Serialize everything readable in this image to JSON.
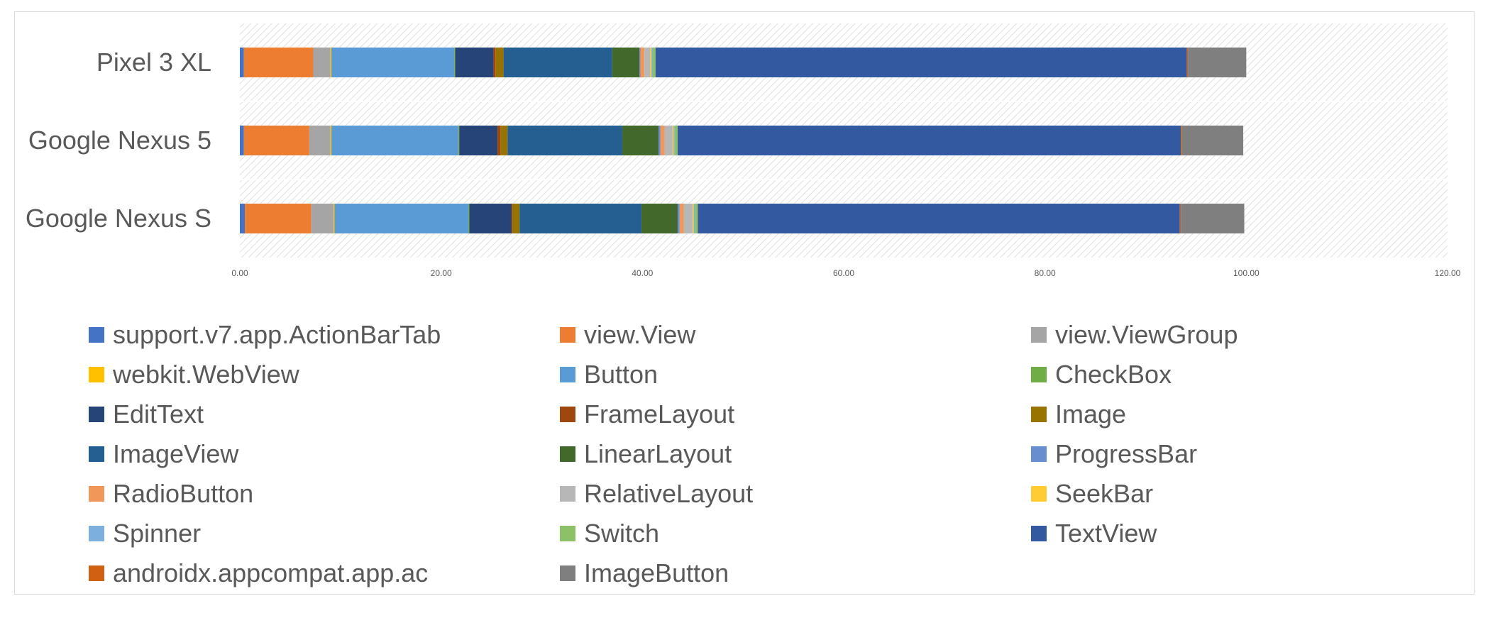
{
  "chart_data": {
    "type": "bar",
    "orientation": "horizontal",
    "stacked": true,
    "title": "",
    "xlabel": "",
    "ylabel": "",
    "xlim": [
      0,
      120
    ],
    "x_ticks": [
      "0.00",
      "20.00",
      "40.00",
      "60.00",
      "80.00",
      "100.00",
      "120.00"
    ],
    "categories": [
      "Pixel 3 XL",
      "Google Nexus 5",
      "Google Nexus S"
    ],
    "grid": false,
    "legend_position": "bottom",
    "series": [
      {
        "name": "support.v7.app.ActionBarTab",
        "color": "#4472C4",
        "values": [
          0.4,
          0.4,
          0.5
        ]
      },
      {
        "name": "view.View",
        "color": "#ED7D31",
        "values": [
          6.9,
          6.5,
          6.6
        ]
      },
      {
        "name": "view.ViewGroup",
        "color": "#A5A5A5",
        "values": [
          1.7,
          2.1,
          2.2
        ]
      },
      {
        "name": "webkit.WebView",
        "color": "#FFC000",
        "values": [
          0.1,
          0.1,
          0.1
        ]
      },
      {
        "name": "Button",
        "color": "#5B9BD5",
        "values": [
          12.2,
          12.6,
          13.3
        ]
      },
      {
        "name": "CheckBox",
        "color": "#70AD47",
        "values": [
          0.1,
          0.1,
          0.1
        ]
      },
      {
        "name": "EditText",
        "color": "#264478",
        "values": [
          3.8,
          3.8,
          4.2
        ]
      },
      {
        "name": "FrameLayout",
        "color": "#9E480E",
        "values": [
          0.2,
          0.3,
          0.1
        ]
      },
      {
        "name": "Image",
        "color": "#997300",
        "values": [
          0.8,
          0.7,
          0.7
        ]
      },
      {
        "name": "ImageView",
        "color": "#255E91",
        "values": [
          10.8,
          11.4,
          12.1
        ]
      },
      {
        "name": "LinearLayout",
        "color": "#43682B",
        "values": [
          2.7,
          3.6,
          3.6
        ]
      },
      {
        "name": "ProgressBar",
        "color": "#698ED0",
        "values": [
          0.1,
          0.2,
          0.2
        ]
      },
      {
        "name": "RadioButton",
        "color": "#F1975A",
        "values": [
          0.4,
          0.4,
          0.4
        ]
      },
      {
        "name": "RelativeLayout",
        "color": "#B7B7B7",
        "values": [
          0.6,
          0.8,
          0.9
        ]
      },
      {
        "name": "SeekBar",
        "color": "#FFCD33",
        "values": [
          0.1,
          0.1,
          0.1
        ]
      },
      {
        "name": "Spinner",
        "color": "#7CAFDD",
        "values": [
          0.1,
          0.1,
          0.1
        ]
      },
      {
        "name": "Switch",
        "color": "#8CC168",
        "values": [
          0.3,
          0.3,
          0.3
        ]
      },
      {
        "name": "TextView",
        "color": "#335AA1",
        "values": [
          52.8,
          50.0,
          47.9
        ]
      },
      {
        "name": "androidx.appcompat.app.ac",
        "color": "#D26012",
        "values": [
          0.1,
          0.1,
          0.1
        ]
      },
      {
        "name": "ImageButton",
        "color": "#7F7F7F",
        "values": [
          5.8,
          6.1,
          6.3
        ]
      }
    ]
  }
}
